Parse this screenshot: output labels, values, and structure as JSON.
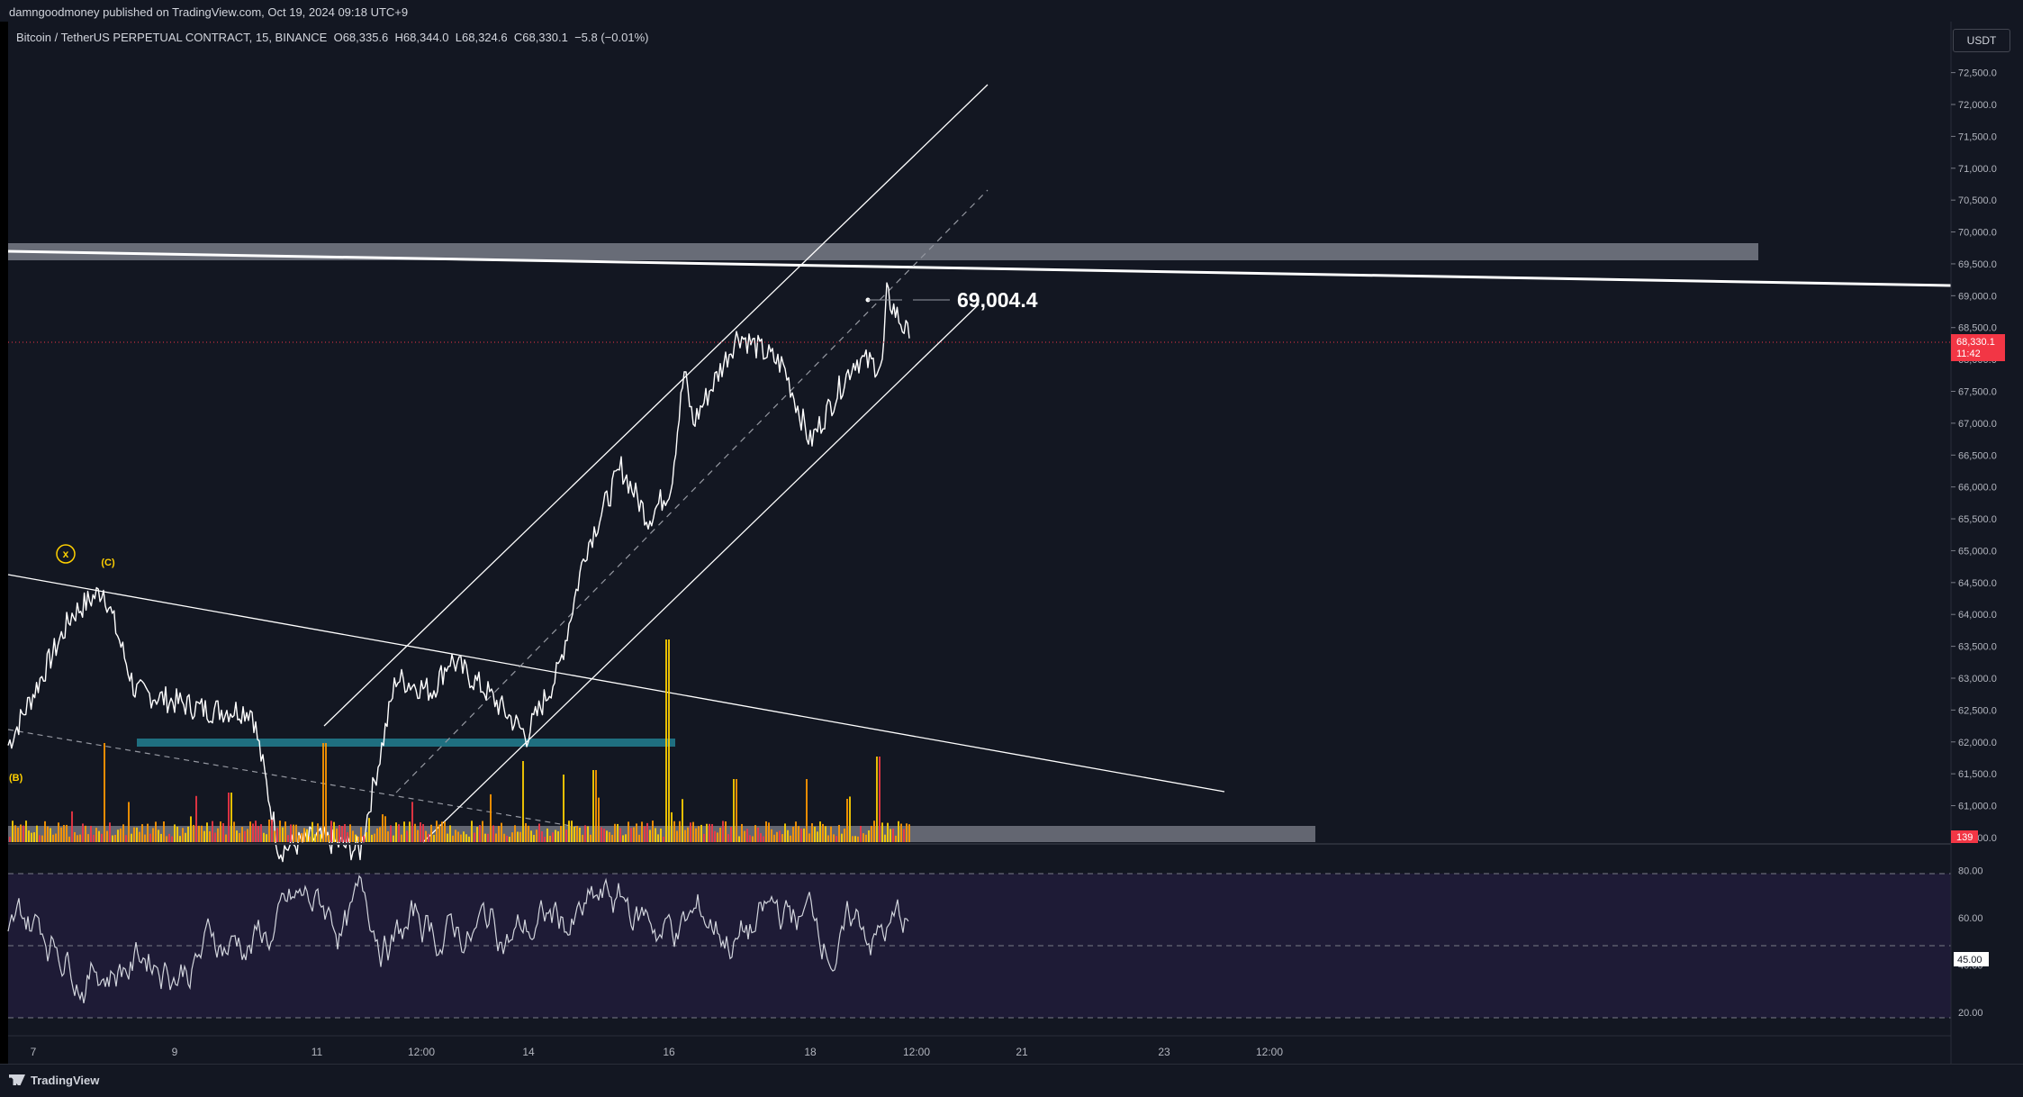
{
  "header": {
    "publisher": "damngoodmoney published on TradingView.com, Oct 19, 2024 09:18 UTC+9"
  },
  "legend": {
    "symbol": "Bitcoin / TetherUS PERPETUAL CONTRACT, 15, BINANCE",
    "o_label": "O",
    "o_value": "68,335.6",
    "h_label": "H",
    "h_value": "68,344.0",
    "l_label": "L",
    "l_value": "68,324.6",
    "c_label": "C",
    "c_value": "68,330.1",
    "change": "−5.8 (−0.01%)"
  },
  "currency_button": "USDT",
  "price_axis": {
    "ticks": [
      "72,500.0",
      "72,000.0",
      "71,500.0",
      "71,000.0",
      "70,500.0",
      "70,000.0",
      "69,500.0",
      "69,000.0",
      "68,500.0",
      "68,000.0",
      "67,500.0",
      "67,000.0",
      "66,500.0",
      "66,000.0",
      "65,500.0",
      "65,000.0",
      "64,500.0",
      "64,000.0",
      "63,500.0",
      "63,000.0",
      "62,500.0",
      "62,000.0",
      "61,500.0",
      "61,000.0",
      "60,500.0"
    ],
    "ymin": 60400,
    "ymax": 73300,
    "last_price": "68,330.1",
    "countdown": "11:42",
    "volume_badge": "139"
  },
  "annotation": {
    "peak_label": "69,004.4",
    "wave_x": "x",
    "wave_c": "(C)",
    "wave_b": "(B)"
  },
  "oscillator": {
    "ticks": [
      "80.00",
      "60.00",
      "40.00",
      "20.00"
    ],
    "current": "45.00",
    "range": [
      10,
      90
    ],
    "bands": [
      80,
      50,
      20
    ]
  },
  "time_axis": {
    "labels": [
      "7",
      "9",
      "11",
      "12:00",
      "14",
      "16",
      "18",
      "12:00",
      "21",
      "23",
      "12:00"
    ]
  },
  "colors": {
    "bg": "#131722",
    "line": "#ffffff",
    "accent_red": "#f23645",
    "zone_grey": "#787b86",
    "support_teal": "#1f6f80",
    "volume_orange": "#ff9800",
    "volume_red": "#f23645",
    "volume_yellow": "#ffd000",
    "osc_bg": "#211c3a"
  },
  "footer": {
    "brand": "TradingView"
  },
  "chart_data": {
    "type": "line",
    "series": [
      {
        "x": [
          "Oct 6 18:00",
          "Oct 7 12:00",
          "Oct 8 00:00",
          "Oct 8 12:00",
          "Oct 9 12:00",
          "Oct 10 00:00",
          "Oct 10 12:00",
          "Oct 11 00:00",
          "Oct 11 12:00",
          "Oct 12 00:00",
          "Oct 12 12:00",
          "Oct 13 00:00",
          "Oct 13 12:00",
          "Oct 14 00:00",
          "Oct 14 12:00",
          "Oct 15 00:00",
          "Oct 15 12:00",
          "Oct 15 18:00",
          "Oct 16 00:00",
          "Oct 16 06:00",
          "Oct 16 12:00",
          "Oct 17 00:00",
          "Oct 17 12:00",
          "Oct 18 00:00",
          "Oct 18 12:00",
          "Oct 19 00:00",
          "Oct 19 06:00",
          "Oct 19 09:00"
        ],
        "values": [
          61950,
          64000,
          64400,
          62800,
          62500,
          62500,
          60300,
          60500,
          60300,
          63000,
          62800,
          63300,
          62800,
          62100,
          63100,
          65000,
          66300,
          65500,
          66000,
          67800,
          67000,
          68400,
          67900,
          66700,
          68000,
          67900,
          69004.4,
          68330.1
        ]
      }
    ],
    "ylim": [
      60400,
      73300
    ]
  }
}
